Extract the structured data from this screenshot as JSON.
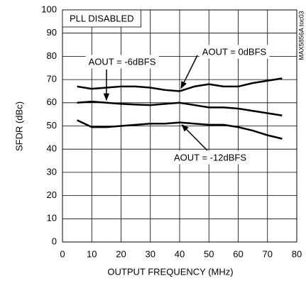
{
  "chart_data": {
    "type": "line",
    "title": "PLL DISABLED",
    "note": "MAX5856A toc03",
    "xlabel": "OUTPUT FREQUENCY (MHz)",
    "ylabel": "SFDR (dBc)",
    "x": [
      5,
      10,
      15,
      20,
      25,
      30,
      35,
      40,
      45,
      50,
      55,
      60,
      65,
      70,
      75
    ],
    "series": [
      {
        "name": "AOUT = 0dBFS",
        "color": "#000000",
        "values": [
          67,
          66,
          66.5,
          67,
          67,
          66.5,
          65.5,
          65,
          67,
          68,
          67,
          67,
          68.5,
          69.5,
          70.5
        ]
      },
      {
        "name": "AOUT = -6dBFS",
        "color": "#000000",
        "values": [
          60,
          60.5,
          60,
          59.5,
          59.2,
          59,
          59.5,
          60,
          59,
          58,
          58,
          57.5,
          56.5,
          55.5,
          54.5
        ]
      },
      {
        "name": "AOUT = -12dBFS",
        "color": "#000000",
        "values": [
          52.5,
          49.5,
          49.5,
          50,
          50.5,
          51,
          51,
          51.5,
          51,
          50.5,
          50.5,
          49.5,
          48,
          46,
          44.5
        ]
      }
    ],
    "xlim": [
      0,
      80
    ],
    "xticks": [
      0,
      10,
      20,
      30,
      40,
      50,
      60,
      70,
      80
    ],
    "ylim": [
      0,
      100
    ],
    "yticks": [
      0,
      10,
      20,
      30,
      40,
      50,
      60,
      70,
      80,
      90,
      100
    ],
    "grid": true
  }
}
